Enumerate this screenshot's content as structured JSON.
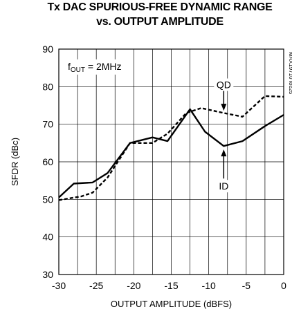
{
  "chart_data": {
    "type": "line",
    "title": "Tx DAC SPURIOUS-FREE DYNAMIC RANGE",
    "subtitle": "vs. OUTPUT AMPLITUDE",
    "xlabel": "OUTPUT AMPLITUDE (dBFS)",
    "ylabel": "SFDR (dBc)",
    "xlim": [
      -30,
      0
    ],
    "ylim": [
      30,
      90
    ],
    "xticks": [
      -30,
      -25,
      -20,
      -15,
      -10,
      -5,
      0
    ],
    "yticks": [
      30,
      40,
      50,
      60,
      70,
      80,
      90
    ],
    "grid": true,
    "condition": {
      "prefix": "f",
      "sub": "OUT",
      "suffix": " = 2MHz"
    },
    "figure_id": "MAX19710 toc25",
    "series": [
      {
        "name": "ID",
        "style": "solid",
        "x": [
          -30,
          -28,
          -25.5,
          -23.5,
          -20.5,
          -17.5,
          -15.5,
          -12.5,
          -10.5,
          -8,
          -5.5,
          -2.5,
          0
        ],
        "y": [
          50.5,
          54.2,
          54.5,
          57,
          65,
          66.5,
          65.5,
          74,
          68,
          64.2,
          65.5,
          69.5,
          72.5
        ]
      },
      {
        "name": "QD",
        "style": "dashed",
        "x": [
          -30,
          -27,
          -25.5,
          -23.5,
          -20.5,
          -17.5,
          -15.5,
          -13,
          -11,
          -8,
          -5.5,
          -2.5,
          0
        ],
        "y": [
          49.8,
          50.8,
          51.8,
          55.8,
          65,
          65,
          67.5,
          73,
          74.3,
          73,
          72,
          77.5,
          77.3
        ]
      }
    ]
  }
}
